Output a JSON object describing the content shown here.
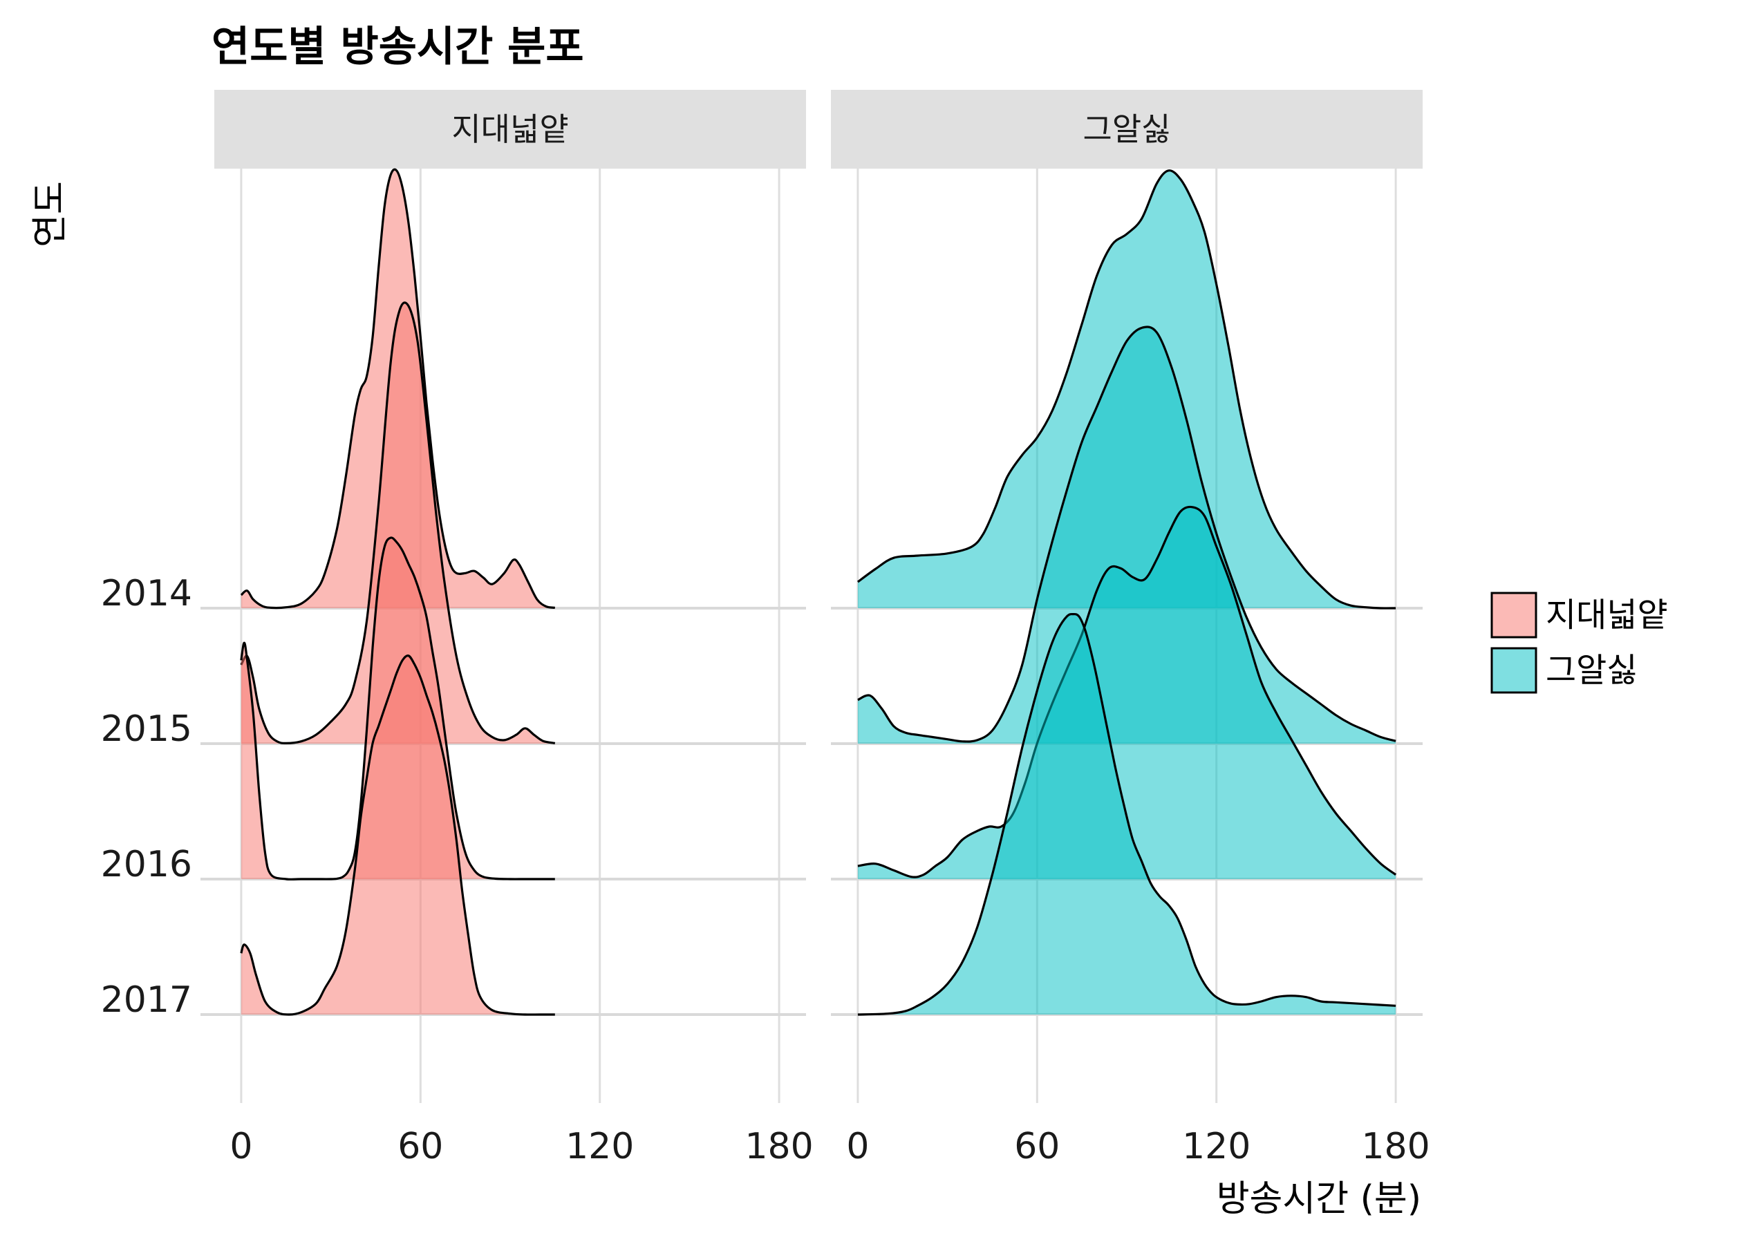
{
  "chart_data": {
    "type": "area",
    "subtype": "ridgeline-density",
    "title": "연도별 방송시간 분포",
    "xlabel": "방송시간 (분)",
    "ylabel": "연도",
    "xlim": [
      -9,
      189
    ],
    "x_ticks": [
      0,
      60,
      120,
      180
    ],
    "x_tick_labels": [
      "0",
      "60",
      "120",
      "180"
    ],
    "y_categories": [
      "2014",
      "2015",
      "2016",
      "2017"
    ],
    "ridge_scale": 4.2,
    "legend": {
      "position": "right",
      "labels": [
        "지대넓얕",
        "그알싫"
      ]
    },
    "colors": {
      "지대넓얕": "#F8766D",
      "그알싫": "#00BFC4"
    },
    "fill_opacity": 0.5,
    "grid": true,
    "panels": [
      {
        "label": "지대넓얕",
        "fill": "#F8766D",
        "series": [
          {
            "year": "2014",
            "x": [
              0,
              2,
              4,
              7,
              10,
              15,
              20,
              25,
              28,
              32,
              35,
              38,
              40,
              42,
              44,
              46,
              48,
              50,
              52,
              54,
              56,
              58,
              60,
              62,
              64,
              66,
              68,
              70,
              72,
              75,
              78,
              81,
              84,
              88,
              91,
              93,
              96,
              99,
              102,
              105
            ],
            "y": [
              0.03,
              0.04,
              0.02,
              0.005,
              0.001,
              0.002,
              0.01,
              0.04,
              0.08,
              0.18,
              0.3,
              0.44,
              0.5,
              0.53,
              0.62,
              0.78,
              0.92,
              0.99,
              1.0,
              0.96,
              0.88,
              0.76,
              0.62,
              0.47,
              0.34,
              0.23,
              0.15,
              0.1,
              0.08,
              0.08,
              0.085,
              0.07,
              0.055,
              0.08,
              0.11,
              0.1,
              0.06,
              0.02,
              0.004,
              0.001
            ]
          },
          {
            "year": "2015",
            "x": [
              0,
              2,
              4,
              6,
              9,
              12,
              15,
              20,
              25,
              30,
              35,
              38,
              42,
              46,
              50,
              53,
              56,
              59,
              62,
              65,
              68,
              72,
              76,
              80,
              84,
              88,
              92,
              95,
              98,
              101,
              105
            ],
            "y": [
              0.18,
              0.2,
              0.15,
              0.08,
              0.025,
              0.005,
              0.001,
              0.005,
              0.02,
              0.05,
              0.09,
              0.14,
              0.28,
              0.55,
              0.87,
              0.99,
              1.0,
              0.92,
              0.74,
              0.54,
              0.37,
              0.2,
              0.1,
              0.04,
              0.015,
              0.008,
              0.02,
              0.035,
              0.02,
              0.006,
              0.001
            ]
          },
          {
            "year": "2016",
            "x": [
              0,
              1,
              2,
              4,
              6,
              8,
              10,
              15,
              20,
              25,
              30,
              32,
              34,
              36,
              38,
              40,
              42,
              44,
              46,
              48,
              50,
              52,
              54,
              56,
              58,
              60,
              62,
              64,
              66,
              68,
              70,
              72,
              75,
              78,
              81,
              85,
              90,
              95,
              100,
              105
            ],
            "y": [
              0.5,
              0.54,
              0.5,
              0.38,
              0.2,
              0.06,
              0.01,
              0.0,
              0.0,
              0.0,
              0.0,
              0.001,
              0.005,
              0.02,
              0.06,
              0.17,
              0.34,
              0.53,
              0.68,
              0.76,
              0.78,
              0.77,
              0.75,
              0.72,
              0.69,
              0.65,
              0.6,
              0.52,
              0.44,
              0.34,
              0.24,
              0.15,
              0.06,
              0.02,
              0.005,
              0.001,
              0.0,
              0.0,
              0.0,
              0.0
            ]
          },
          {
            "year": "2017",
            "x": [
              0,
              1,
              3,
              5,
              8,
              12,
              16,
              20,
              25,
              28,
              32,
              35,
              38,
              40,
              42,
              44,
              46,
              48,
              50,
              52,
              54,
              56,
              58,
              60,
              62,
              64,
              66,
              68,
              70,
              72,
              74,
              76,
              78,
              80,
              84,
              90,
              95,
              100,
              105
            ],
            "y": [
              0.14,
              0.16,
              0.14,
              0.09,
              0.03,
              0.005,
              0.0,
              0.005,
              0.025,
              0.06,
              0.11,
              0.19,
              0.33,
              0.45,
              0.54,
              0.62,
              0.66,
              0.7,
              0.74,
              0.78,
              0.81,
              0.82,
              0.8,
              0.77,
              0.73,
              0.69,
              0.64,
              0.58,
              0.5,
              0.4,
              0.28,
              0.18,
              0.09,
              0.04,
              0.01,
              0.002,
              0.0,
              0.0,
              0.0
            ]
          }
        ]
      },
      {
        "label": "그알싫",
        "fill": "#00BFC4",
        "series": [
          {
            "year": "2014",
            "x": [
              0,
              6,
              12,
              20,
              30,
              38,
              42,
              46,
              50,
              55,
              60,
              65,
              70,
              75,
              80,
              85,
              90,
              95,
              100,
              104,
              108,
              112,
              116,
              120,
              124,
              128,
              132,
              136,
              140,
              145,
              150,
              155,
              160,
              165,
              170,
              175,
              180
            ],
            "y": [
              0.06,
              0.09,
              0.115,
              0.12,
              0.125,
              0.14,
              0.17,
              0.23,
              0.3,
              0.35,
              0.39,
              0.45,
              0.54,
              0.65,
              0.76,
              0.83,
              0.855,
              0.89,
              0.97,
              1.0,
              0.98,
              0.93,
              0.86,
              0.74,
              0.6,
              0.45,
              0.33,
              0.24,
              0.18,
              0.13,
              0.085,
              0.05,
              0.02,
              0.006,
              0.002,
              0.0,
              0.0
            ]
          },
          {
            "year": "2015",
            "x": [
              0,
              4,
              8,
              12,
              16,
              20,
              25,
              30,
              35,
              40,
              45,
              50,
              55,
              60,
              65,
              70,
              75,
              80,
              85,
              90,
              95,
              100,
              105,
              110,
              115,
              120,
              125,
              130,
              135,
              140,
              145,
              150,
              155,
              160,
              165,
              170,
              175,
              180
            ],
            "y": [
              0.1,
              0.11,
              0.08,
              0.04,
              0.025,
              0.02,
              0.015,
              0.01,
              0.005,
              0.008,
              0.03,
              0.09,
              0.18,
              0.33,
              0.46,
              0.58,
              0.69,
              0.77,
              0.85,
              0.92,
              0.95,
              0.94,
              0.86,
              0.74,
              0.6,
              0.48,
              0.38,
              0.29,
              0.22,
              0.17,
              0.14,
              0.115,
              0.09,
              0.065,
              0.045,
              0.03,
              0.015,
              0.006
            ]
          },
          {
            "year": "2016",
            "x": [
              0,
              6,
              12,
              18,
              22,
              26,
              30,
              35,
              40,
              44,
              48,
              52,
              56,
              60,
              65,
              70,
              75,
              80,
              84,
              88,
              92,
              96,
              100,
              104,
              108,
              112,
              116,
              120,
              125,
              130,
              135,
              140,
              145,
              150,
              155,
              160,
              165,
              170,
              175,
              180
            ],
            "y": [
              0.03,
              0.035,
              0.02,
              0.005,
              0.01,
              0.03,
              0.05,
              0.09,
              0.11,
              0.12,
              0.12,
              0.15,
              0.22,
              0.31,
              0.4,
              0.48,
              0.56,
              0.66,
              0.71,
              0.71,
              0.69,
              0.685,
              0.73,
              0.79,
              0.84,
              0.85,
              0.83,
              0.76,
              0.67,
              0.56,
              0.45,
              0.38,
              0.32,
              0.26,
              0.2,
              0.15,
              0.11,
              0.07,
              0.035,
              0.01
            ]
          },
          {
            "year": "2017",
            "x": [
              0,
              10,
              16,
              20,
              25,
              30,
              35,
              40,
              45,
              50,
              55,
              60,
              64,
              67,
              70,
              72,
              74,
              76,
              78,
              80,
              83,
              86,
              89,
              92,
              95,
              98,
              101,
              104,
              107,
              110,
              113,
              116,
              119,
              122,
              125,
              128,
              131,
              135,
              140,
              145,
              150,
              155,
              160,
              170,
              180
            ],
            "y": [
              0.0,
              0.002,
              0.008,
              0.02,
              0.04,
              0.07,
              0.12,
              0.2,
              0.32,
              0.46,
              0.61,
              0.74,
              0.83,
              0.88,
              0.91,
              0.915,
              0.91,
              0.88,
              0.83,
              0.77,
              0.67,
              0.57,
              0.48,
              0.4,
              0.35,
              0.3,
              0.27,
              0.25,
              0.22,
              0.17,
              0.11,
              0.07,
              0.045,
              0.032,
              0.025,
              0.023,
              0.024,
              0.03,
              0.04,
              0.043,
              0.04,
              0.03,
              0.028,
              0.024,
              0.02
            ]
          }
        ]
      }
    ]
  }
}
